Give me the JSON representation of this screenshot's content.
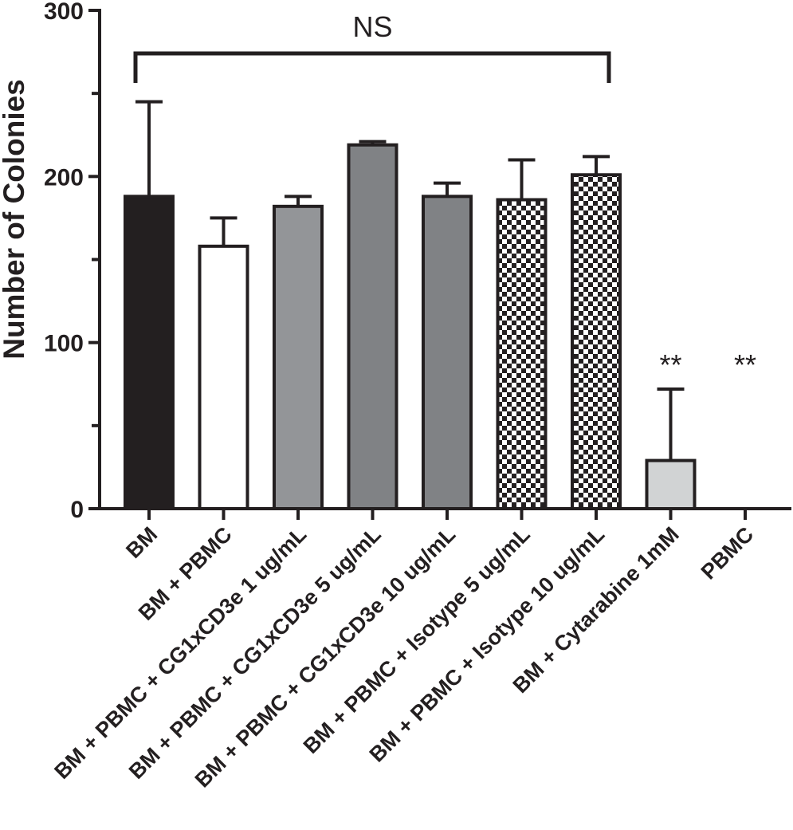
{
  "chart_data": {
    "type": "bar",
    "title": "",
    "xlabel": "",
    "ylabel": "Number of Colonies",
    "ylim": [
      0,
      300
    ],
    "yticks": [
      0,
      100,
      200,
      300
    ],
    "categories": [
      "BM",
      "BM + PBMC",
      "BM + PBMC + CG1xCD3e 1 ug/mL",
      "BM + PBMC + CG1xCD3e 5 ug/mL",
      "BM + PBMC + CG1xCD3e 10 ug/mL",
      "BM + PBMC + Isotype 5 ug/mL",
      "BM + PBMC + Isotype 10 ug/mL",
      "BM + Cytarabine 1mM",
      "PBMC"
    ],
    "values": [
      188,
      158,
      182,
      219,
      188,
      186,
      201,
      29,
      0
    ],
    "errors": [
      57,
      17,
      6,
      2,
      8,
      24,
      11,
      43,
      0
    ],
    "fills": [
      "#231f20",
      "#ffffff",
      "#939598",
      "#808285",
      "#808285",
      "checker",
      "checker",
      "#d1d3d4",
      "#ffffff"
    ],
    "significance": [
      {
        "text": "NS",
        "from": 0,
        "to": 6
      },
      {
        "text": "**",
        "category": 7
      },
      {
        "text": "**",
        "category": 8
      }
    ]
  }
}
